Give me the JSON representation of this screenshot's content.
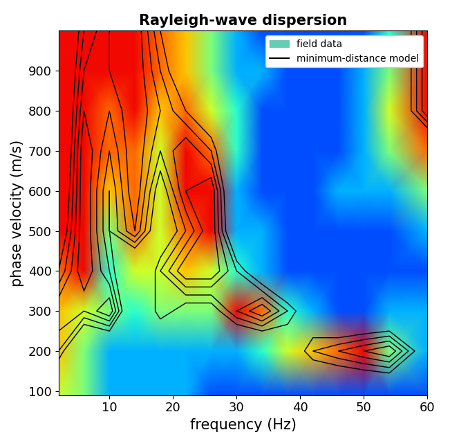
{
  "chart_data": {
    "type": "heatmap",
    "title": "Rayleigh-wave dispersion",
    "x_label": "frequency (Hz)",
    "y_label": "phase velocity (m/s)",
    "x": [
      2,
      6,
      10,
      14,
      18,
      22,
      26,
      30,
      34,
      38,
      42,
      46,
      50,
      54,
      60
    ],
    "y": [
      90,
      200,
      300,
      400,
      500,
      600,
      700,
      800,
      900,
      1000
    ],
    "xlim": [
      2,
      60
    ],
    "ylim": [
      90,
      1000
    ],
    "xticks": [
      10,
      20,
      30,
      40,
      50,
      60
    ],
    "yticks": [
      100,
      200,
      300,
      400,
      500,
      600,
      700,
      800,
      900
    ],
    "color_range": [
      0,
      1
    ],
    "model_levels": [
      0.5,
      0.6,
      0.7,
      0.8,
      0.9
    ],
    "legend": "upper right",
    "series": [
      {
        "name": "field data",
        "color": "#66ccb3",
        "type": "heatmap",
        "values": [
          [
            0.6,
            0.5,
            0.3,
            0.3,
            0.3,
            0.3,
            0.2,
            0.2,
            0.2,
            0.2,
            0.2,
            0.2,
            0.2,
            0.2,
            0.2
          ],
          [
            0.7,
            0.5,
            0.3,
            0.3,
            0.3,
            0.3,
            0.3,
            0.3,
            0.4,
            0.6,
            0.7,
            0.8,
            0.9,
            0.5,
            0.3
          ],
          [
            0.7,
            0.6,
            0.5,
            0.4,
            0.5,
            0.5,
            0.5,
            0.9,
            0.8,
            0.4,
            0.3,
            0.2,
            0.2,
            0.3,
            0.3
          ],
          [
            0.8,
            0.9,
            0.4,
            0.6,
            0.6,
            0.7,
            0.6,
            0.4,
            0.3,
            0.2,
            0.2,
            0.2,
            0.2,
            0.2,
            0.2
          ],
          [
            0.9,
            0.9,
            0.5,
            0.8,
            0.6,
            0.8,
            0.9,
            0.3,
            0.3,
            0.2,
            0.2,
            0.2,
            0.2,
            0.2,
            0.3
          ],
          [
            0.9,
            0.9,
            0.7,
            0.8,
            0.6,
            0.9,
            0.9,
            0.3,
            0.2,
            0.2,
            0.2,
            0.3,
            0.3,
            0.3,
            0.5
          ],
          [
            0.9,
            0.9,
            0.8,
            0.8,
            0.6,
            0.9,
            0.8,
            0.4,
            0.2,
            0.2,
            0.2,
            0.2,
            0.3,
            0.5,
            0.8
          ],
          [
            0.9,
            0.9,
            0.8,
            0.9,
            0.7,
            0.8,
            0.6,
            0.4,
            0.2,
            0.2,
            0.2,
            0.2,
            0.3,
            0.6,
            0.9
          ],
          [
            0.9,
            0.9,
            0.9,
            0.9,
            0.8,
            0.7,
            0.5,
            0.3,
            0.3,
            0.2,
            0.2,
            0.2,
            0.3,
            0.5,
            0.9
          ],
          [
            0.9,
            0.9,
            0.9,
            0.9,
            0.8,
            0.7,
            0.5,
            0.3,
            0.2,
            0.2,
            0.2,
            0.2,
            0.2,
            0.4,
            0.9
          ]
        ]
      },
      {
        "name": "minimum-distance model",
        "color": "#000000",
        "type": "contour",
        "values": [
          [
            0.1,
            0.1,
            0.1,
            0.1,
            0.1,
            0.1,
            0.1,
            0.1,
            0.1,
            0.1,
            0.1,
            0.1,
            0.1,
            0.1,
            0.1
          ],
          [
            0.6,
            0.1,
            0.1,
            0.1,
            0.1,
            0.1,
            0.1,
            0.1,
            0.1,
            0.3,
            0.6,
            0.7,
            0.8,
            0.9,
            0.3
          ],
          [
            0.8,
            0.7,
            0.9,
            0.1,
            0.6,
            0.4,
            0.4,
            0.7,
            0.9,
            0.6,
            0.3,
            0.1,
            0.1,
            0.1,
            0.4
          ],
          [
            0.5,
            0.9,
            0.6,
            0.1,
            0.6,
            0.9,
            0.9,
            0.6,
            0.3,
            0.1,
            0.1,
            0.1,
            0.1,
            0.1,
            0.1
          ],
          [
            0.3,
            0.9,
            0.5,
            0.8,
            0.3,
            0.6,
            0.9,
            0.2,
            0.1,
            0.1,
            0.1,
            0.1,
            0.1,
            0.1,
            0.1
          ],
          [
            0.2,
            0.9,
            0.5,
            0.9,
            0.4,
            0.8,
            0.9,
            0.1,
            0.1,
            0.1,
            0.1,
            0.1,
            0.1,
            0.1,
            0.1
          ],
          [
            0.1,
            0.9,
            0.6,
            0.9,
            0.6,
            0.8,
            0.6,
            0.1,
            0.1,
            0.1,
            0.1,
            0.1,
            0.1,
            0.1,
            0.1
          ],
          [
            0.1,
            0.8,
            0.7,
            0.9,
            0.7,
            0.5,
            0.3,
            0.1,
            0.1,
            0.1,
            0.1,
            0.1,
            0.1,
            0.1,
            0.8
          ],
          [
            0.1,
            0.7,
            0.8,
            0.9,
            0.6,
            0.3,
            0.1,
            0.1,
            0.1,
            0.1,
            0.1,
            0.1,
            0.1,
            0.1,
            0.8
          ],
          [
            0.1,
            0.6,
            0.8,
            0.9,
            0.5,
            0.2,
            0.1,
            0.1,
            0.1,
            0.1,
            0.1,
            0.1,
            0.1,
            0.1,
            0.8
          ]
        ]
      }
    ]
  }
}
